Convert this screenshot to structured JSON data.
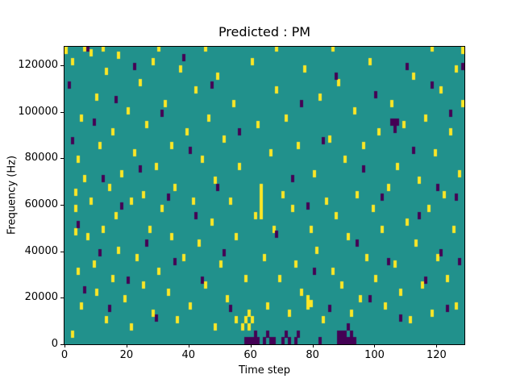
{
  "chart_data": {
    "type": "heatmap",
    "title": "Predicted : PM",
    "xlabel": "Time step",
    "ylabel": "Frequency (Hz)",
    "xlim": [
      0,
      129
    ],
    "ylim": [
      0,
      128000
    ],
    "x_ticks": [
      0,
      20,
      40,
      60,
      80,
      100,
      120
    ],
    "y_ticks": [
      0,
      20000,
      40000,
      60000,
      80000,
      100000,
      120000
    ],
    "grid": false,
    "legend": "none",
    "colors": {
      "background": "#21918c",
      "high": "#fde725",
      "low": "#440154"
    },
    "cell": {
      "w_units": 1,
      "h_units": 3000
    },
    "points_high": [
      [
        0,
        125000
      ],
      [
        2,
        120000
      ],
      [
        2,
        3000
      ],
      [
        3,
        64000
      ],
      [
        3,
        57000
      ],
      [
        3,
        47000
      ],
      [
        4,
        78000
      ],
      [
        4,
        30000
      ],
      [
        5,
        96000
      ],
      [
        5,
        15000
      ],
      [
        6,
        70000
      ],
      [
        6,
        126000
      ],
      [
        7,
        45000
      ],
      [
        8,
        124000
      ],
      [
        8,
        60000
      ],
      [
        9,
        33000
      ],
      [
        10,
        105000
      ],
      [
        10,
        21000
      ],
      [
        11,
        84000
      ],
      [
        12,
        48000
      ],
      [
        12,
        126000
      ],
      [
        13,
        116000
      ],
      [
        13,
        9000
      ],
      [
        14,
        66000
      ],
      [
        15,
        90000
      ],
      [
        15,
        27000
      ],
      [
        16,
        54000
      ],
      [
        17,
        123000
      ],
      [
        17,
        39000
      ],
      [
        18,
        72000
      ],
      [
        19,
        18000
      ],
      [
        20,
        99000
      ],
      [
        21,
        60000
      ],
      [
        21,
        6000
      ],
      [
        22,
        81000
      ],
      [
        23,
        36000
      ],
      [
        24,
        111000
      ],
      [
        25,
        24000
      ],
      [
        25,
        63000
      ],
      [
        26,
        93000
      ],
      [
        27,
        48000
      ],
      [
        28,
        12000
      ],
      [
        28,
        120000
      ],
      [
        29,
        75000
      ],
      [
        30,
        30000
      ],
      [
        30,
        126000
      ],
      [
        31,
        57000
      ],
      [
        32,
        102000
      ],
      [
        33,
        21000
      ],
      [
        34,
        84000
      ],
      [
        34,
        45000
      ],
      [
        35,
        66000
      ],
      [
        36,
        9000
      ],
      [
        37,
        117000
      ],
      [
        38,
        36000
      ],
      [
        39,
        90000
      ],
      [
        40,
        15000
      ],
      [
        41,
        60000
      ],
      [
        42,
        108000
      ],
      [
        43,
        42000
      ],
      [
        44,
        78000
      ],
      [
        45,
        24000
      ],
      [
        45,
        126000
      ],
      [
        46,
        96000
      ],
      [
        47,
        51000
      ],
      [
        48,
        6000
      ],
      [
        48,
        69000
      ],
      [
        49,
        114000
      ],
      [
        50,
        33000
      ],
      [
        51,
        87000
      ],
      [
        52,
        18000
      ],
      [
        53,
        60000
      ],
      [
        54,
        102000
      ],
      [
        55,
        9000
      ],
      [
        55,
        45000
      ],
      [
        56,
        75000
      ],
      [
        57,
        6000
      ],
      [
        58,
        9000
      ],
      [
        58,
        27000
      ],
      [
        59,
        6000
      ],
      [
        59,
        12000
      ],
      [
        60,
        9000
      ],
      [
        60,
        120000
      ],
      [
        61,
        54000
      ],
      [
        62,
        93000
      ],
      [
        63,
        66000
      ],
      [
        63,
        63000
      ],
      [
        63,
        60000
      ],
      [
        63,
        57000
      ],
      [
        63,
        54000
      ],
      [
        64,
        36000
      ],
      [
        65,
        15000
      ],
      [
        66,
        81000
      ],
      [
        67,
        48000
      ],
      [
        68,
        108000
      ],
      [
        68,
        126000
      ],
      [
        69,
        27000
      ],
      [
        70,
        63000
      ],
      [
        71,
        96000
      ],
      [
        72,
        12000
      ],
      [
        73,
        57000
      ],
      [
        74,
        33000
      ],
      [
        75,
        84000
      ],
      [
        76,
        21000
      ],
      [
        77,
        117000
      ],
      [
        78,
        15000
      ],
      [
        78,
        18000
      ],
      [
        79,
        16000
      ],
      [
        79,
        48000
      ],
      [
        80,
        72000
      ],
      [
        81,
        39000
      ],
      [
        82,
        105000
      ],
      [
        83,
        9000
      ],
      [
        84,
        60000
      ],
      [
        85,
        87000
      ],
      [
        86,
        30000
      ],
      [
        86,
        126000
      ],
      [
        87,
        54000
      ],
      [
        88,
        111000
      ],
      [
        89,
        24000
      ],
      [
        90,
        78000
      ],
      [
        91,
        45000
      ],
      [
        92,
        12000
      ],
      [
        93,
        99000
      ],
      [
        94,
        63000
      ],
      [
        95,
        18000
      ],
      [
        96,
        84000
      ],
      [
        97,
        36000
      ],
      [
        98,
        120000
      ],
      [
        99,
        57000
      ],
      [
        100,
        27000
      ],
      [
        101,
        90000
      ],
      [
        102,
        48000
      ],
      [
        103,
        15000
      ],
      [
        104,
        66000
      ],
      [
        105,
        102000
      ],
      [
        106,
        33000
      ],
      [
        107,
        75000
      ],
      [
        108,
        21000
      ],
      [
        109,
        93000
      ],
      [
        110,
        51000
      ],
      [
        111,
        9000
      ],
      [
        112,
        114000
      ],
      [
        113,
        42000
      ],
      [
        114,
        69000
      ],
      [
        115,
        24000
      ],
      [
        116,
        96000
      ],
      [
        117,
        57000
      ],
      [
        118,
        12000
      ],
      [
        118,
        126000
      ],
      [
        119,
        81000
      ],
      [
        120,
        36000
      ],
      [
        121,
        108000
      ],
      [
        122,
        63000
      ],
      [
        123,
        27000
      ],
      [
        124,
        90000
      ],
      [
        125,
        48000
      ],
      [
        126,
        117000
      ],
      [
        126,
        15000
      ],
      [
        127,
        72000
      ],
      [
        128,
        102000
      ],
      [
        128,
        125000
      ]
    ],
    "points_low": [
      [
        1,
        110000
      ],
      [
        2,
        86000
      ],
      [
        4,
        50000
      ],
      [
        6,
        22000
      ],
      [
        7,
        126000
      ],
      [
        9,
        94000
      ],
      [
        11,
        38000
      ],
      [
        12,
        70000
      ],
      [
        14,
        14000
      ],
      [
        16,
        104000
      ],
      [
        18,
        58000
      ],
      [
        20,
        26000
      ],
      [
        22,
        118000
      ],
      [
        24,
        74000
      ],
      [
        26,
        42000
      ],
      [
        29,
        10000
      ],
      [
        31,
        98000
      ],
      [
        33,
        62000
      ],
      [
        35,
        34000
      ],
      [
        38,
        122000
      ],
      [
        40,
        82000
      ],
      [
        42,
        54000
      ],
      [
        44,
        26000
      ],
      [
        47,
        110000
      ],
      [
        49,
        66000
      ],
      [
        51,
        38000
      ],
      [
        53,
        14000
      ],
      [
        56,
        90000
      ],
      [
        58,
        0
      ],
      [
        59,
        0
      ],
      [
        60,
        0
      ],
      [
        61,
        0
      ],
      [
        61,
        3000
      ],
      [
        62,
        0
      ],
      [
        64,
        0
      ],
      [
        65,
        3000
      ],
      [
        66,
        0
      ],
      [
        67,
        0
      ],
      [
        68,
        46000
      ],
      [
        70,
        0
      ],
      [
        71,
        3000
      ],
      [
        72,
        0
      ],
      [
        73,
        70000
      ],
      [
        74,
        0
      ],
      [
        75,
        3000
      ],
      [
        76,
        102000
      ],
      [
        78,
        58000
      ],
      [
        80,
        30000
      ],
      [
        82,
        0
      ],
      [
        83,
        86000
      ],
      [
        85,
        14000
      ],
      [
        87,
        114000
      ],
      [
        88,
        0
      ],
      [
        88,
        3000
      ],
      [
        89,
        0
      ],
      [
        89,
        3000
      ],
      [
        90,
        0
      ],
      [
        90,
        3000
      ],
      [
        91,
        0
      ],
      [
        91,
        6000
      ],
      [
        92,
        0
      ],
      [
        92,
        3000
      ],
      [
        93,
        0
      ],
      [
        94,
        42000
      ],
      [
        96,
        74000
      ],
      [
        98,
        18000
      ],
      [
        100,
        106000
      ],
      [
        102,
        62000
      ],
      [
        104,
        34000
      ],
      [
        105,
        94000
      ],
      [
        106,
        94000
      ],
      [
        106,
        91000
      ],
      [
        107,
        94000
      ],
      [
        108,
        10000
      ],
      [
        110,
        118000
      ],
      [
        112,
        82000
      ],
      [
        114,
        54000
      ],
      [
        116,
        26000
      ],
      [
        118,
        110000
      ],
      [
        120,
        66000
      ],
      [
        121,
        38000
      ],
      [
        123,
        14000
      ],
      [
        124,
        98000
      ],
      [
        126,
        62000
      ],
      [
        127,
        34000
      ],
      [
        128,
        118000
      ]
    ]
  }
}
